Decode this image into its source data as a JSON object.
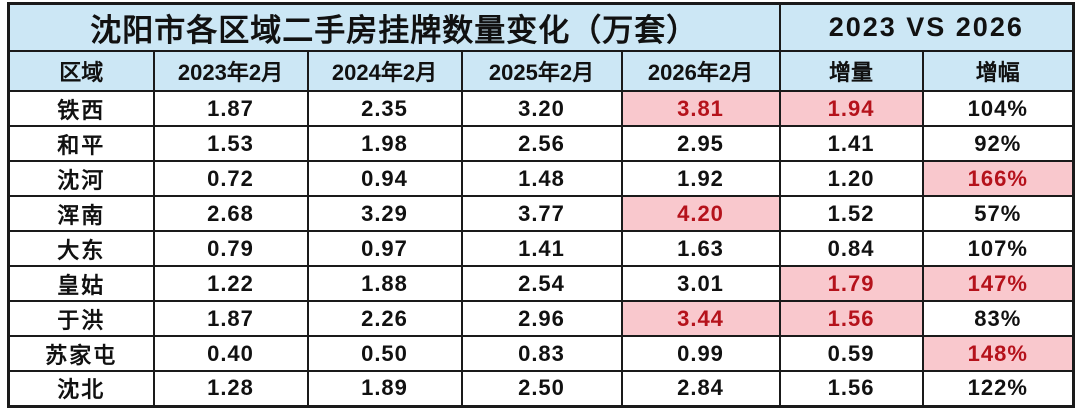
{
  "colors": {
    "header_bg": "#cce7f5",
    "highlight_bg": "#f9c8cd",
    "highlight_text": "#b5121b",
    "border": "#1a1a1a",
    "text": "#111111"
  },
  "chart_data": {
    "type": "table",
    "title": "沈阳市各区域二手房挂牌数量变化（万套）",
    "comparison_label": "2023 VS 2026",
    "columns": [
      "区域",
      "2023年2月",
      "2024年2月",
      "2025年2月",
      "2026年2月",
      "增量",
      "增幅"
    ],
    "rows": [
      {
        "region": "铁西",
        "values": [
          "1.87",
          "2.35",
          "3.20",
          "3.81",
          "1.94",
          "104%"
        ],
        "highlight": [
          3,
          4
        ]
      },
      {
        "region": "和平",
        "values": [
          "1.53",
          "1.98",
          "2.56",
          "2.95",
          "1.41",
          "92%"
        ],
        "highlight": []
      },
      {
        "region": "沈河",
        "values": [
          "0.72",
          "0.94",
          "1.48",
          "1.92",
          "1.20",
          "166%"
        ],
        "highlight": [
          5
        ]
      },
      {
        "region": "浑南",
        "values": [
          "2.68",
          "3.29",
          "3.77",
          "4.20",
          "1.52",
          "57%"
        ],
        "highlight": [
          3
        ]
      },
      {
        "region": "大东",
        "values": [
          "0.79",
          "0.97",
          "1.41",
          "1.63",
          "0.84",
          "107%"
        ],
        "highlight": []
      },
      {
        "region": "皇姑",
        "values": [
          "1.22",
          "1.88",
          "2.54",
          "3.01",
          "1.79",
          "147%"
        ],
        "highlight": [
          4,
          5
        ]
      },
      {
        "region": "于洪",
        "values": [
          "1.87",
          "2.26",
          "2.96",
          "3.44",
          "1.56",
          "83%"
        ],
        "highlight": [
          3,
          4
        ]
      },
      {
        "region": "苏家屯",
        "values": [
          "0.40",
          "0.50",
          "0.83",
          "0.99",
          "0.59",
          "148%"
        ],
        "highlight": [
          5
        ]
      },
      {
        "region": "沈北",
        "values": [
          "1.28",
          "1.89",
          "2.50",
          "2.84",
          "1.56",
          "122%"
        ],
        "highlight": []
      }
    ]
  }
}
